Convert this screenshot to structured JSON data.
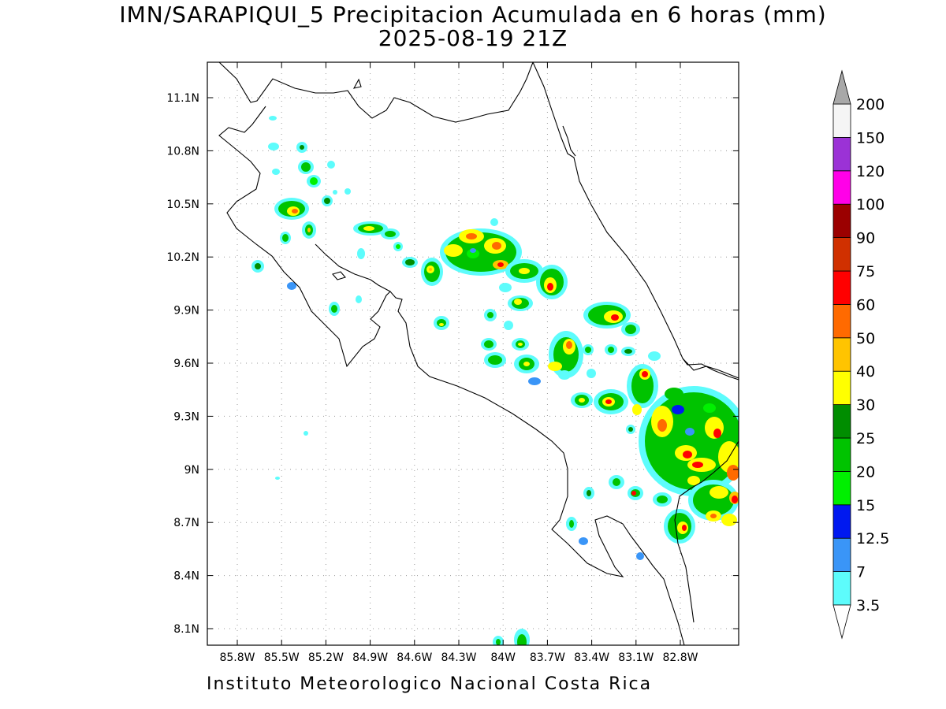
{
  "title_line1": "IMN/SARAPIQUI_5 Precipitacion Acumulada en 6 horas (mm)",
  "title_line2": "2025-08-19 21Z",
  "footer": "Instituto Meteorologico Nacional Costa Rica",
  "map": {
    "lat_labels": [
      "11.1N",
      "10.8N",
      "10.5N",
      "10.2N",
      "9.9N",
      "9.6N",
      "9.3N",
      "9N",
      "8.7N",
      "8.4N",
      "8.1N"
    ],
    "lon_labels": [
      "85.8W",
      "85.5W",
      "85.2W",
      "84.9W",
      "84.6W",
      "84.3W",
      "84W",
      "83.7W",
      "83.4W",
      "83.1W",
      "82.8W"
    ]
  },
  "colorbar": {
    "labels": [
      "3.5",
      "7",
      "12.5",
      "15",
      "20",
      "25",
      "30",
      "40",
      "50",
      "60",
      "75",
      "90",
      "100",
      "120",
      "150",
      "200"
    ],
    "colors": [
      "#5dfcfc",
      "#3a95f7",
      "#0019f0",
      "#00f000",
      "#00c300",
      "#008d00",
      "#ffff00",
      "#ffc400",
      "#ff6a00",
      "#ff0000",
      "#d03000",
      "#9b0000",
      "#ff00e8",
      "#9b32d6",
      "#f5f5f5"
    ],
    "upper_arrow_color": "#a8a8a8",
    "lower_arrow_color": "#ffffff"
  }
}
